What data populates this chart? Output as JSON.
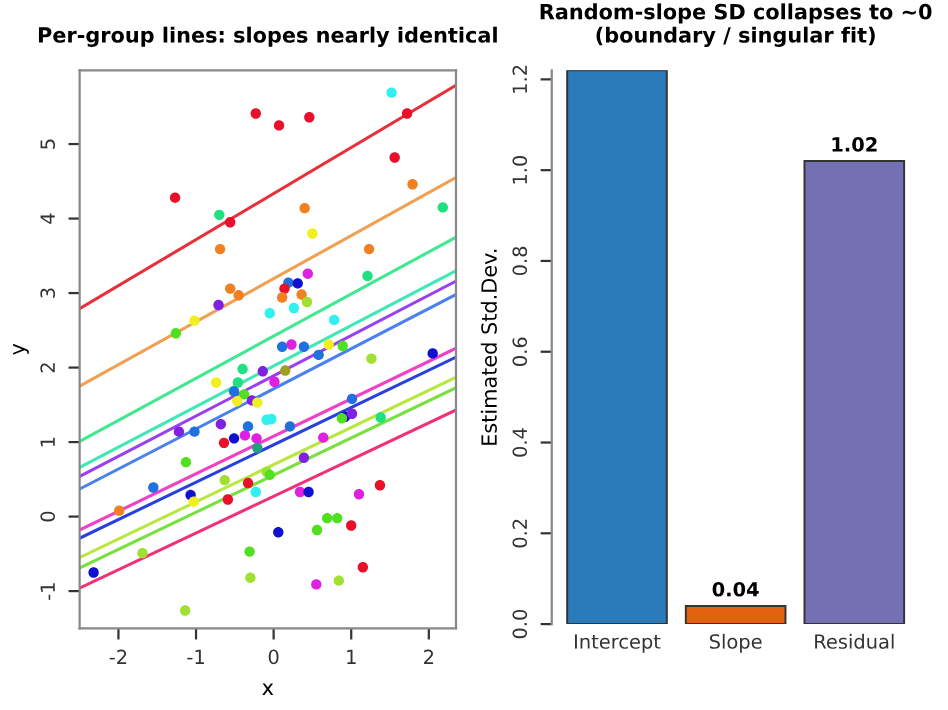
{
  "chart_data": [
    {
      "type": "scatter",
      "title": "Per-group lines: slopes nearly identical",
      "xlabel": "x",
      "ylabel": "y",
      "xlim": [
        -2.5,
        2.35
      ],
      "ylim": [
        -1.5,
        5.99
      ],
      "xticks": [
        -2,
        -1,
        0,
        1,
        2
      ],
      "yticks": [
        -1,
        0,
        1,
        2,
        3,
        4,
        5
      ],
      "grid": false,
      "legend": false,
      "series": [
        {
          "type": "scatter",
          "marker": "circle",
          "x": [
            -0.23,
            0.07,
            0.46,
            1.52,
            1.72,
            1.56,
            1.79,
            -1.27,
            -0.7,
            -0.56,
            0.4,
            2.18,
            0.5,
            -0.69,
            1.23,
            0.44,
            1.21,
            0.19,
            0.31,
            0.14,
            -0.56,
            -0.45,
            0.11,
            0.36,
            -0.71,
            0.26,
            0.43,
            -0.05,
            0.78,
            -1.02,
            -1.26,
            0.23,
            0.11,
            0.39,
            0.89,
            0.71,
            0.58,
            1.26,
            2.05,
            -0.4,
            -0.14,
            0.15,
            -0.74,
            -0.46,
            -0.51,
            -0.38,
            -0.47,
            -0.28,
            -0.21,
            0.01,
            -0.09,
            -0.03,
            1.01,
            0.92,
            1.01,
            0.88,
            1.38,
            -1.22,
            -1.02,
            -0.68,
            -0.33,
            0.21,
            -0.51,
            -0.64,
            -0.37,
            -0.22,
            -0.21,
            0.64,
            -1.13,
            -0.09,
            -0.05,
            -0.63,
            -1.55,
            -0.33,
            0.39,
            1.37,
            -1.07,
            -1.03,
            -0.59,
            -0.23,
            0.34,
            0.45,
            1.1,
            -1.99,
            0.69,
            0.82,
            1.0,
            0.06,
            0.56,
            -1.69,
            -0.31,
            1.15,
            -2.32,
            -0.3,
            0.55,
            0.84,
            -1.14
          ],
          "values": [
            5.41,
            5.25,
            5.36,
            5.69,
            5.41,
            4.82,
            4.46,
            4.28,
            4.05,
            3.95,
            4.14,
            4.15,
            3.8,
            3.59,
            3.59,
            3.26,
            3.23,
            3.14,
            3.13,
            3.06,
            3.06,
            2.97,
            2.94,
            2.98,
            2.84,
            2.8,
            2.88,
            2.73,
            2.64,
            2.63,
            2.46,
            2.31,
            2.28,
            2.28,
            2.29,
            2.31,
            2.17,
            2.12,
            2.19,
            1.98,
            1.95,
            1.96,
            1.8,
            1.8,
            1.68,
            1.64,
            1.55,
            1.56,
            1.53,
            1.81,
            1.3,
            1.31,
            1.58,
            1.34,
            1.38,
            1.32,
            1.33,
            1.14,
            1.14,
            1.24,
            1.21,
            1.21,
            1.05,
            0.99,
            1.09,
            1.05,
            0.92,
            1.06,
            0.73,
            0.6,
            0.56,
            0.49,
            0.39,
            0.45,
            0.79,
            0.42,
            0.29,
            0.2,
            0.23,
            0.33,
            0.33,
            0.33,
            0.3,
            0.08,
            -0.02,
            -0.02,
            -0.12,
            -0.21,
            -0.18,
            -0.49,
            -0.47,
            -0.68,
            -0.75,
            -0.82,
            -0.91,
            -0.86,
            -1.26
          ],
          "colors": [
            "#e8102a",
            "#e8102a",
            "#e8102a",
            "#30f0f0",
            "#e8102a",
            "#e8102a",
            "#f08020",
            "#e8102a",
            "#20e080",
            "#e8102a",
            "#f08020",
            "#20e080",
            "#f0f020",
            "#f08020",
            "#f08020",
            "#e020e0",
            "#20e080",
            "#2070e0",
            "#1010d0",
            "#e8102a",
            "#f08020",
            "#f08020",
            "#f08020",
            "#f08020",
            "#8020e0",
            "#30f0f0",
            "#a0e030",
            "#30f0f0",
            "#30f0f0",
            "#f0f020",
            "#50e020",
            "#e020e0",
            "#2070e0",
            "#2070e0",
            "#50e020",
            "#f0f020",
            "#2070e0",
            "#a0e030",
            "#1010d0",
            "#20e080",
            "#8020e0",
            "#a0a020",
            "#f0f020",
            "#20e080",
            "#2070e0",
            "#50e020",
            "#f0f020",
            "#8020e0",
            "#f0f020",
            "#e020e0",
            "#30f0f0",
            "#30f0f0",
            "#2070e0",
            "#1010d0",
            "#8020e0",
            "#50e020",
            "#20e080",
            "#8020e0",
            "#2070e0",
            "#8020e0",
            "#2070e0",
            "#2070e0",
            "#1010d0",
            "#e8102a",
            "#e020e0",
            "#e020e0",
            "#20a080",
            "#e020e0",
            "#50e020",
            "#a0e030",
            "#50e020",
            "#a0e030",
            "#2070e0",
            "#e8102a",
            "#8020e0",
            "#e8102a",
            "#1010d0",
            "#f0f020",
            "#e8102a",
            "#30f0f0",
            "#e020e0",
            "#1010d0",
            "#e020e0",
            "#f08020",
            "#50e020",
            "#50e020",
            "#e8102a",
            "#1010d0",
            "#50e020",
            "#a0e030",
            "#50e020",
            "#e8102a",
            "#1010d0",
            "#a0e030",
            "#e020e0",
            "#a0e030",
            "#a0e030"
          ]
        },
        {
          "type": "line",
          "x": [
            -2.5,
            2.35
          ],
          "values": [
            2.79,
            5.79
          ],
          "color": "#e8303a"
        },
        {
          "type": "line",
          "x": [
            -2.5,
            2.35
          ],
          "values": [
            1.75,
            4.55
          ],
          "color": "#f0a050"
        },
        {
          "type": "line",
          "x": [
            -2.5,
            2.35
          ],
          "values": [
            1.01,
            3.75
          ],
          "color": "#40e890"
        },
        {
          "type": "line",
          "x": [
            -2.5,
            2.35
          ],
          "values": [
            0.66,
            3.3
          ],
          "color": "#40e8b8"
        },
        {
          "type": "line",
          "x": [
            -2.5,
            2.35
          ],
          "values": [
            0.54,
            3.16
          ],
          "color": "#9a40f0"
        },
        {
          "type": "line",
          "x": [
            -2.5,
            2.35
          ],
          "values": [
            0.37,
            2.98
          ],
          "color": "#4a80f0"
        },
        {
          "type": "line",
          "x": [
            -2.5,
            2.35
          ],
          "values": [
            -0.18,
            2.26
          ],
          "color": "#f040c8"
        },
        {
          "type": "line",
          "x": [
            -2.5,
            2.35
          ],
          "values": [
            -0.29,
            2.14
          ],
          "color": "#2840e0"
        },
        {
          "type": "line",
          "x": [
            -2.5,
            2.35
          ],
          "values": [
            -0.55,
            1.87
          ],
          "color": "#b8e840"
        },
        {
          "type": "line",
          "x": [
            -2.5,
            2.35
          ],
          "values": [
            -0.69,
            1.73
          ],
          "color": "#78e040"
        },
        {
          "type": "line",
          "x": [
            -2.5,
            2.35
          ],
          "values": [
            -0.96,
            1.43
          ],
          "color": "#f03078"
        }
      ]
    },
    {
      "type": "bar",
      "title": "Random-slope SD collapses to ~0\n(boundary / singular fit)",
      "ylabel": "Estimated Std.Dev.",
      "categories": [
        "Intercept",
        "Slope",
        "Residual"
      ],
      "values": [
        1.22,
        0.04,
        1.02
      ],
      "colors": [
        "#2b7bba",
        "#e0610e",
        "#7570b3"
      ],
      "value_labels": [
        null,
        "0.04",
        "1.02"
      ],
      "ylim": [
        0,
        1.22
      ],
      "yticks": [
        {
          "value": 0,
          "label": "0.0"
        },
        0.2,
        0.4,
        0.6,
        0.8,
        {
          "value": 1,
          "label": "1.0"
        },
        1.2
      ],
      "grid": false,
      "legend": false
    }
  ]
}
